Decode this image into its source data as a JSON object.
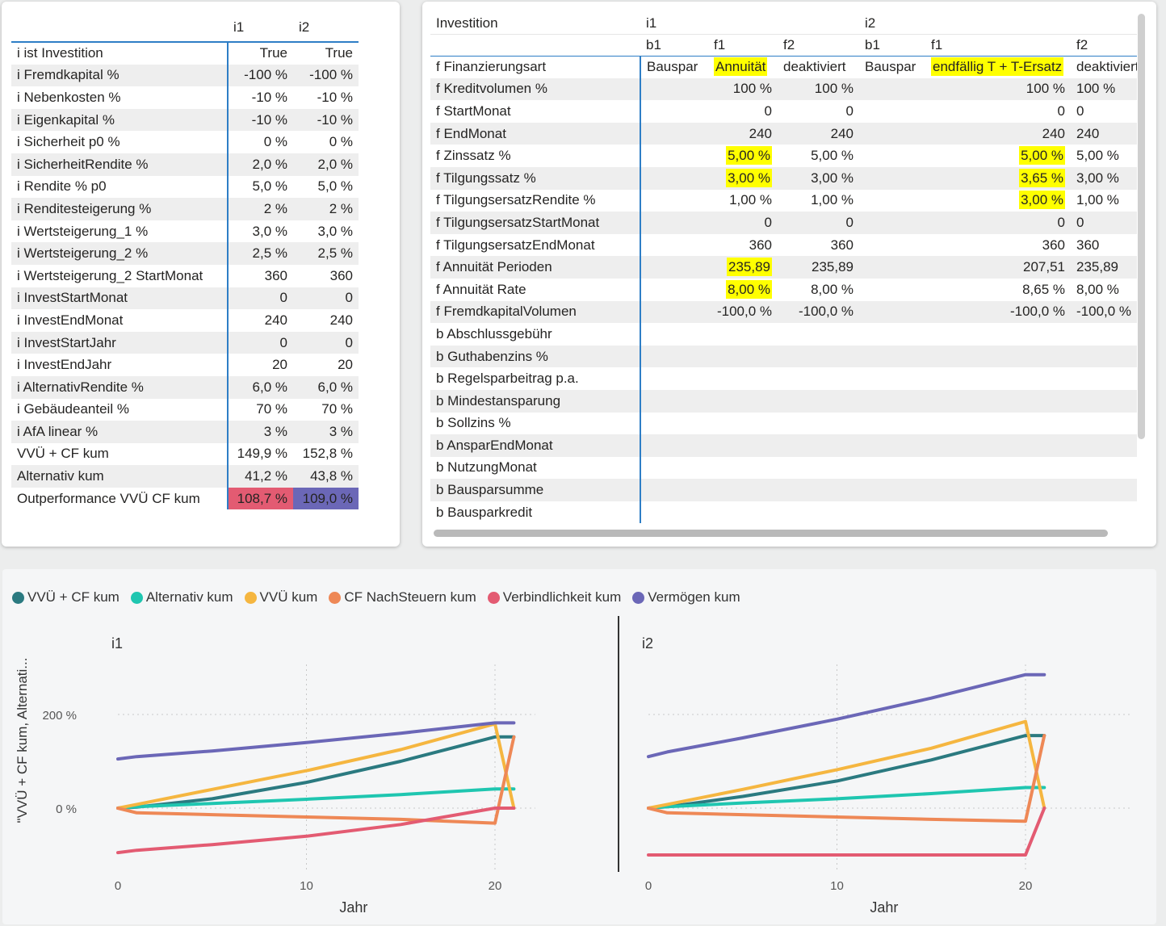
{
  "left_table": {
    "col_headers": [
      "i1",
      "i2"
    ],
    "rows": [
      {
        "label": "i ist Investition",
        "i1": "True",
        "i2": "True"
      },
      {
        "label": "i Fremdkapital %",
        "i1": "-100 %",
        "i2": "-100 %"
      },
      {
        "label": "i Nebenkosten %",
        "i1": "-10 %",
        "i2": "-10 %"
      },
      {
        "label": "i Eigenkapital %",
        "i1": "-10 %",
        "i2": "-10 %"
      },
      {
        "label": "i Sicherheit p0 %",
        "i1": "0 %",
        "i2": "0 %"
      },
      {
        "label": "i SicherheitRendite %",
        "i1": "2,0 %",
        "i2": "2,0 %"
      },
      {
        "label": "i Rendite % p0",
        "i1": "5,0 %",
        "i2": "5,0 %"
      },
      {
        "label": "i Renditesteigerung %",
        "i1": "2 %",
        "i2": "2 %"
      },
      {
        "label": "i Wertsteigerung_1 %",
        "i1": "3,0 %",
        "i2": "3,0 %"
      },
      {
        "label": "i Wertsteigerung_2 %",
        "i1": "2,5 %",
        "i2": "2,5 %"
      },
      {
        "label": "i Wertsteigerung_2 StartMonat",
        "i1": "360",
        "i2": "360"
      },
      {
        "label": "i InvestStartMonat",
        "i1": "0",
        "i2": "0"
      },
      {
        "label": "i InvestEndMonat",
        "i1": "240",
        "i2": "240"
      },
      {
        "label": "i InvestStartJahr",
        "i1": "0",
        "i2": "0"
      },
      {
        "label": "i InvestEndJahr",
        "i1": "20",
        "i2": "20"
      },
      {
        "label": "i AlternativRendite %",
        "i1": "6,0 %",
        "i2": "6,0 %"
      },
      {
        "label": "i Gebäudeanteil %",
        "i1": "70 %",
        "i2": "70 %"
      },
      {
        "label": "i AfA linear %",
        "i1": "3 %",
        "i2": "3 %"
      },
      {
        "label": "VVÜ + CF kum",
        "i1": "149,9 %",
        "i2": "152,8 %"
      },
      {
        "label": "Alternativ kum",
        "i1": "41,2 %",
        "i2": "43,8 %"
      },
      {
        "label": "Outperformance VVÜ CF kum",
        "i1": "108,7 %",
        "i2": "109,0 %"
      }
    ],
    "outperformance_colors": {
      "i1": "#e35b72",
      "i2": "#6b67b7"
    }
  },
  "right_table": {
    "corner_label": "Investition",
    "groups": [
      "i1",
      "i2"
    ],
    "subcols": [
      "b1",
      "f1",
      "f2",
      "b1",
      "f1",
      "f2"
    ],
    "rows": [
      {
        "label": "f Finanzierungsart",
        "cells": [
          "Bauspar",
          "Annuität",
          "deaktiviert",
          "Bauspar",
          "endfällig T + T-Ersatz",
          "deaktiviert"
        ]
      },
      {
        "label": "f Kreditvolumen %",
        "cells": [
          "",
          "100 %",
          "100 %",
          "",
          "100 %",
          "100 %"
        ]
      },
      {
        "label": "f StartMonat",
        "cells": [
          "",
          "0",
          "0",
          "",
          "0",
          "0"
        ]
      },
      {
        "label": "f EndMonat",
        "cells": [
          "",
          "240",
          "240",
          "",
          "240",
          "240"
        ]
      },
      {
        "label": "f Zinssatz %",
        "cells": [
          "",
          "5,00 %",
          "5,00 %",
          "",
          "5,00 %",
          "5,00 %"
        ]
      },
      {
        "label": "f Tilgungssatz %",
        "cells": [
          "",
          "3,00 %",
          "3,00 %",
          "",
          "3,65 %",
          "3,00 %"
        ]
      },
      {
        "label": "f TilgungsersatzRendite %",
        "cells": [
          "",
          "1,00 %",
          "1,00 %",
          "",
          "3,00 %",
          "1,00 %"
        ]
      },
      {
        "label": "f TilgungsersatzStartMonat",
        "cells": [
          "",
          "0",
          "0",
          "",
          "0",
          "0"
        ]
      },
      {
        "label": "f TilgungsersatzEndMonat",
        "cells": [
          "",
          "360",
          "360",
          "",
          "360",
          "360"
        ]
      },
      {
        "label": "f Annuität Perioden",
        "cells": [
          "",
          "235,89",
          "235,89",
          "",
          "207,51",
          "235,89"
        ]
      },
      {
        "label": "f Annuität Rate",
        "cells": [
          "",
          "8,00 %",
          "8,00 %",
          "",
          "8,65 %",
          "8,00 %"
        ]
      },
      {
        "label": "f FremdkapitalVolumen",
        "cells": [
          "",
          "-100,0 %",
          "-100,0 %",
          "",
          "-100,0 %",
          "-100,0 %"
        ]
      },
      {
        "label": "b Abschlussgebühr",
        "cells": [
          "",
          "",
          "",
          "",
          "",
          ""
        ]
      },
      {
        "label": "b Guthabenzins %",
        "cells": [
          "",
          "",
          "",
          "",
          "",
          ""
        ]
      },
      {
        "label": "b Regelsparbeitrag p.a.",
        "cells": [
          "",
          "",
          "",
          "",
          "",
          ""
        ]
      },
      {
        "label": "b Mindestansparung",
        "cells": [
          "",
          "",
          "",
          "",
          "",
          ""
        ]
      },
      {
        "label": "b Sollzins %",
        "cells": [
          "",
          "",
          "",
          "",
          "",
          ""
        ]
      },
      {
        "label": "b AnsparEndMonat",
        "cells": [
          "",
          "",
          "",
          "",
          "",
          ""
        ]
      },
      {
        "label": "b NutzungMonat",
        "cells": [
          "",
          "",
          "",
          "",
          "",
          ""
        ]
      },
      {
        "label": "b Bausparsumme",
        "cells": [
          "",
          "",
          "",
          "",
          "",
          ""
        ]
      },
      {
        "label": "b Bausparkredit",
        "cells": [
          "",
          "",
          "",
          "",
          "",
          ""
        ]
      }
    ],
    "highlight_color": "#ffff00"
  },
  "chart_data": {
    "type": "line",
    "ylabel": "\"VVÜ + CF kum, Alternati...",
    "xlabel": "Jahr",
    "y_ticks": [
      "200 %",
      "0 %"
    ],
    "x_ticks": [
      "0",
      "10",
      "20"
    ],
    "xlim": [
      0,
      26
    ],
    "ylim": [
      -120,
      300
    ],
    "legend": [
      {
        "name": "VVÜ + CF kum",
        "color": "#2b7a80"
      },
      {
        "name": "Alternativ kum",
        "color": "#1fc6b0"
      },
      {
        "name": "VVÜ kum",
        "color": "#f5b640"
      },
      {
        "name": "CF NachSteuern kum",
        "color": "#ee8856"
      },
      {
        "name": "Verbindlichkeit kum",
        "color": "#e35b72"
      },
      {
        "name": "Vermögen kum",
        "color": "#6b67b7"
      }
    ],
    "panels": [
      {
        "title": "i1",
        "x": [
          0,
          1,
          5,
          10,
          15,
          20,
          21
        ],
        "series": [
          {
            "name": "VVÜ + CF kum",
            "values": [
              0,
              2,
              20,
              55,
              100,
              152,
              152
            ]
          },
          {
            "name": "Alternativ kum",
            "values": [
              0,
              3,
              10,
              19,
              29,
              41,
              41
            ]
          },
          {
            "name": "VVÜ kum",
            "values": [
              0,
              8,
              40,
              80,
              125,
              180,
              0
            ]
          },
          {
            "name": "CF NachSteuern kum",
            "values": [
              0,
              -10,
              -14,
              -19,
              -24,
              -32,
              152
            ]
          },
          {
            "name": "Verbindlichkeit kum",
            "values": [
              -95,
              -90,
              -78,
              -60,
              -35,
              0,
              0
            ]
          },
          {
            "name": "Vermögen kum",
            "values": [
              105,
              110,
              122,
              140,
              160,
              182,
              182
            ]
          }
        ]
      },
      {
        "title": "i2",
        "x": [
          0,
          1,
          5,
          10,
          15,
          20,
          21
        ],
        "series": [
          {
            "name": "VVÜ + CF kum",
            "values": [
              0,
              3,
              25,
              58,
              103,
              155,
              155
            ]
          },
          {
            "name": "Alternativ kum",
            "values": [
              0,
              3,
              11,
              20,
              31,
              44,
              44
            ]
          },
          {
            "name": "VVÜ kum",
            "values": [
              0,
              8,
              40,
              82,
              128,
              185,
              0
            ]
          },
          {
            "name": "CF NachSteuern kum",
            "values": [
              0,
              -10,
              -14,
              -19,
              -24,
              -28,
              155
            ]
          },
          {
            "name": "Verbindlichkeit kum",
            "values": [
              -100,
              -100,
              -100,
              -100,
              -100,
              -100,
              0
            ]
          },
          {
            "name": "Vermögen kum",
            "values": [
              110,
              120,
              150,
              190,
              235,
              285,
              285
            ]
          }
        ]
      }
    ]
  }
}
